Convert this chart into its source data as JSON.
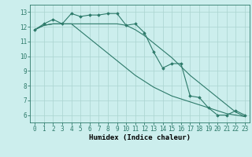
{
  "xlabel": "Humidex (Indice chaleur)",
  "x": [
    0,
    1,
    2,
    3,
    4,
    5,
    6,
    7,
    8,
    9,
    10,
    11,
    12,
    13,
    14,
    15,
    16,
    17,
    18,
    19,
    20,
    21,
    22,
    23
  ],
  "line1": [
    11.8,
    12.2,
    12.5,
    12.2,
    12.9,
    12.7,
    12.8,
    12.8,
    12.9,
    12.9,
    12.1,
    12.2,
    11.6,
    10.3,
    9.2,
    9.5,
    9.5,
    7.3,
    7.2,
    6.5,
    6.0,
    6.0,
    6.3,
    6.0
  ],
  "line2": [
    11.8,
    12.1,
    12.2,
    12.2,
    12.2,
    12.2,
    12.2,
    12.2,
    12.2,
    12.2,
    12.1,
    11.8,
    11.4,
    10.9,
    10.4,
    9.9,
    9.3,
    8.7,
    8.2,
    7.7,
    7.2,
    6.7,
    6.2,
    5.9
  ],
  "line3": [
    11.8,
    12.1,
    12.2,
    12.2,
    12.2,
    11.7,
    11.2,
    10.7,
    10.2,
    9.7,
    9.2,
    8.7,
    8.3,
    7.9,
    7.6,
    7.3,
    7.1,
    6.9,
    6.7,
    6.5,
    6.3,
    6.1,
    6.0,
    5.9
  ],
  "line_color": "#2d7a6a",
  "bg_color": "#cceeed",
  "grid_color": "#aad4d0",
  "ylim": [
    5.5,
    13.5
  ],
  "yticks": [
    6,
    7,
    8,
    9,
    10,
    11,
    12,
    13
  ],
  "xlim": [
    -0.5,
    23.5
  ],
  "tick_fontsize": 5.5,
  "xlabel_fontsize": 6.5
}
